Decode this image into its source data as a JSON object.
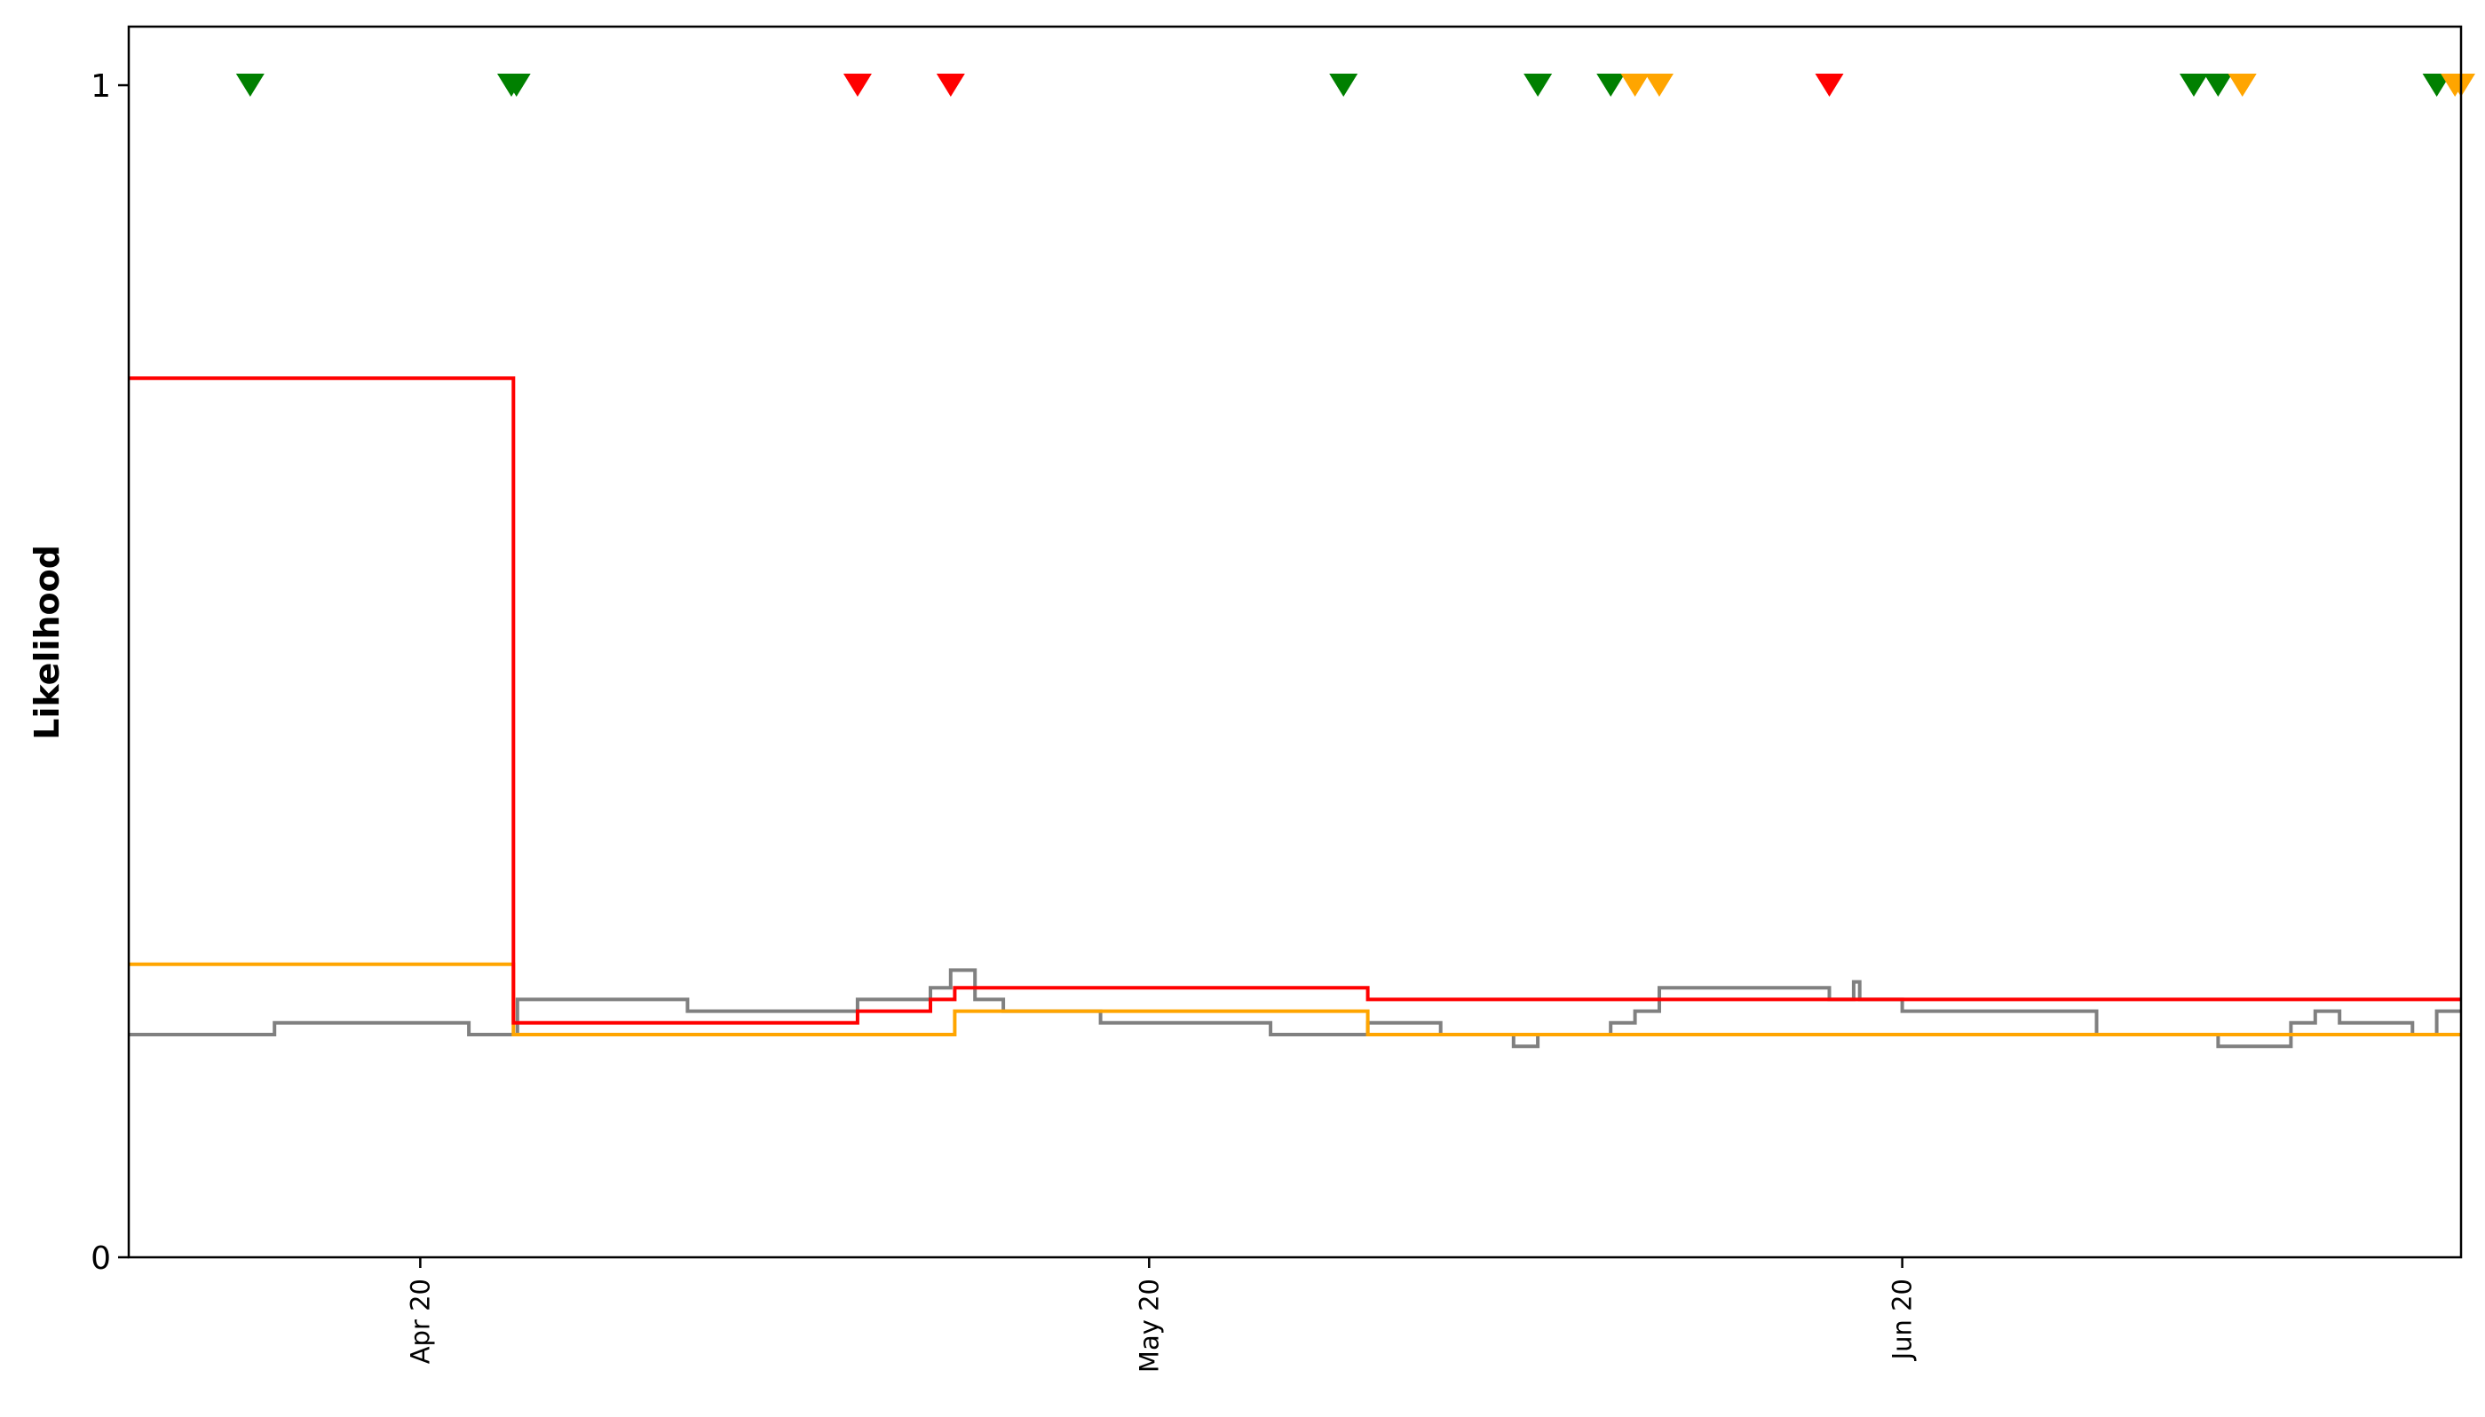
{
  "chart_data": {
    "type": "line",
    "title": "",
    "xlabel": "",
    "ylabel": "Likelihood",
    "xlim": [
      "2020-04-08",
      "2020-07-13"
    ],
    "ylim": [
      0,
      1.05
    ],
    "yticks": [
      0,
      1
    ],
    "ytick_labels": [
      "0",
      "1"
    ],
    "xticks": [
      "2020-04-20",
      "2020-05-20",
      "2020-06-20"
    ],
    "xtick_labels": [
      "Apr 20",
      "May 20",
      "Jun 20"
    ],
    "grid": false,
    "legend": null,
    "colors": {
      "red": "#ff0000",
      "orange": "#ffa500",
      "gray": "#808080",
      "green": "#008000"
    },
    "series": [
      {
        "color": "#ff0000",
        "style": "step",
        "points": [
          [
            "2020-04-08",
            0.75
          ],
          [
            "2020-04-23T20:00",
            0.75
          ],
          [
            "2020-04-23T20:00",
            0.2
          ],
          [
            "2020-05-08",
            0.2
          ],
          [
            "2020-05-08",
            0.21
          ],
          [
            "2020-05-11",
            0.21
          ],
          [
            "2020-05-11",
            0.22
          ],
          [
            "2020-05-12",
            0.22
          ],
          [
            "2020-05-12",
            0.23
          ],
          [
            "2020-05-29",
            0.23
          ],
          [
            "2020-05-29",
            0.22
          ],
          [
            "2020-06-08",
            0.22
          ],
          [
            "2020-06-08",
            0.22
          ],
          [
            "2020-07-13",
            0.22
          ]
        ]
      },
      {
        "color": "#ffa500",
        "style": "step",
        "points": [
          [
            "2020-04-08",
            0.25
          ],
          [
            "2020-04-23T20:00",
            0.25
          ],
          [
            "2020-04-23T20:00",
            0.19
          ],
          [
            "2020-05-12",
            0.19
          ],
          [
            "2020-05-12",
            0.21
          ],
          [
            "2020-05-29",
            0.21
          ],
          [
            "2020-05-29",
            0.19
          ],
          [
            "2020-07-13",
            0.19
          ]
        ]
      },
      {
        "color": "#808080",
        "style": "step",
        "points": [
          [
            "2020-04-08",
            0.19
          ],
          [
            "2020-04-14",
            0.19
          ],
          [
            "2020-04-14",
            0.2
          ],
          [
            "2020-04-22",
            0.2
          ],
          [
            "2020-04-22",
            0.19
          ],
          [
            "2020-04-24",
            0.19
          ],
          [
            "2020-04-24",
            0.22
          ],
          [
            "2020-05-01",
            0.22
          ],
          [
            "2020-05-01",
            0.21
          ],
          [
            "2020-05-08",
            0.21
          ],
          [
            "2020-05-08",
            0.22
          ],
          [
            "2020-05-11",
            0.22
          ],
          [
            "2020-05-11",
            0.23
          ],
          [
            "2020-05-11T20:00",
            0.23
          ],
          [
            "2020-05-11T20:00",
            0.245
          ],
          [
            "2020-05-12T20:00",
            0.245
          ],
          [
            "2020-05-12T20:00",
            0.22
          ],
          [
            "2020-05-14",
            0.22
          ],
          [
            "2020-05-14",
            0.21
          ],
          [
            "2020-05-18",
            0.21
          ],
          [
            "2020-05-18",
            0.2
          ],
          [
            "2020-05-25",
            0.2
          ],
          [
            "2020-05-25",
            0.19
          ],
          [
            "2020-05-29",
            0.19
          ],
          [
            "2020-05-29",
            0.2
          ],
          [
            "2020-06-01",
            0.2
          ],
          [
            "2020-06-01",
            0.19
          ],
          [
            "2020-06-04",
            0.19
          ],
          [
            "2020-06-04",
            0.18
          ],
          [
            "2020-06-05",
            0.18
          ],
          [
            "2020-06-05",
            0.19
          ],
          [
            "2020-06-08",
            0.19
          ],
          [
            "2020-06-08",
            0.2
          ],
          [
            "2020-06-09",
            0.2
          ],
          [
            "2020-06-09",
            0.21
          ],
          [
            "2020-06-10",
            0.21
          ],
          [
            "2020-06-10",
            0.23
          ],
          [
            "2020-06-17",
            0.23
          ],
          [
            "2020-06-17",
            0.22
          ],
          [
            "2020-06-18",
            0.22
          ],
          [
            "2020-06-18",
            0.235
          ],
          [
            "2020-06-18T06:00",
            0.235
          ],
          [
            "2020-06-18T06:00",
            0.22
          ],
          [
            "2020-06-20",
            0.22
          ],
          [
            "2020-06-20",
            0.21
          ],
          [
            "2020-06-28",
            0.21
          ],
          [
            "2020-06-28",
            0.19
          ],
          [
            "2020-07-03",
            0.19
          ],
          [
            "2020-07-03",
            0.18
          ],
          [
            "2020-07-06",
            0.18
          ],
          [
            "2020-07-06",
            0.2
          ],
          [
            "2020-07-07",
            0.2
          ],
          [
            "2020-07-07",
            0.21
          ],
          [
            "2020-07-08",
            0.21
          ],
          [
            "2020-07-08",
            0.2
          ],
          [
            "2020-07-11",
            0.2
          ],
          [
            "2020-07-11",
            0.19
          ],
          [
            "2020-07-12",
            0.19
          ],
          [
            "2020-07-12",
            0.21
          ],
          [
            "2020-07-13",
            0.21
          ]
        ]
      }
    ],
    "markers": {
      "shape": "triangle-down",
      "y": 1,
      "points": [
        {
          "x": "2020-04-13",
          "color": "#008000"
        },
        {
          "x": "2020-04-23T18:00",
          "color": "#008000"
        },
        {
          "x": "2020-04-23T23:00",
          "color": "#008000"
        },
        {
          "x": "2020-05-08",
          "color": "#ff0000"
        },
        {
          "x": "2020-05-11T20:00",
          "color": "#ff0000"
        },
        {
          "x": "2020-05-28",
          "color": "#008000"
        },
        {
          "x": "2020-06-05",
          "color": "#008000"
        },
        {
          "x": "2020-06-08",
          "color": "#008000"
        },
        {
          "x": "2020-06-09",
          "color": "#ffa500"
        },
        {
          "x": "2020-06-10",
          "color": "#ffa500"
        },
        {
          "x": "2020-06-17",
          "color": "#ff0000"
        },
        {
          "x": "2020-07-02",
          "color": "#008000"
        },
        {
          "x": "2020-07-03",
          "color": "#008000"
        },
        {
          "x": "2020-07-04",
          "color": "#ffa500"
        },
        {
          "x": "2020-07-12",
          "color": "#008000"
        },
        {
          "x": "2020-07-12T18:00",
          "color": "#ffa500"
        },
        {
          "x": "2020-07-13",
          "color": "#ffa500"
        }
      ]
    }
  }
}
